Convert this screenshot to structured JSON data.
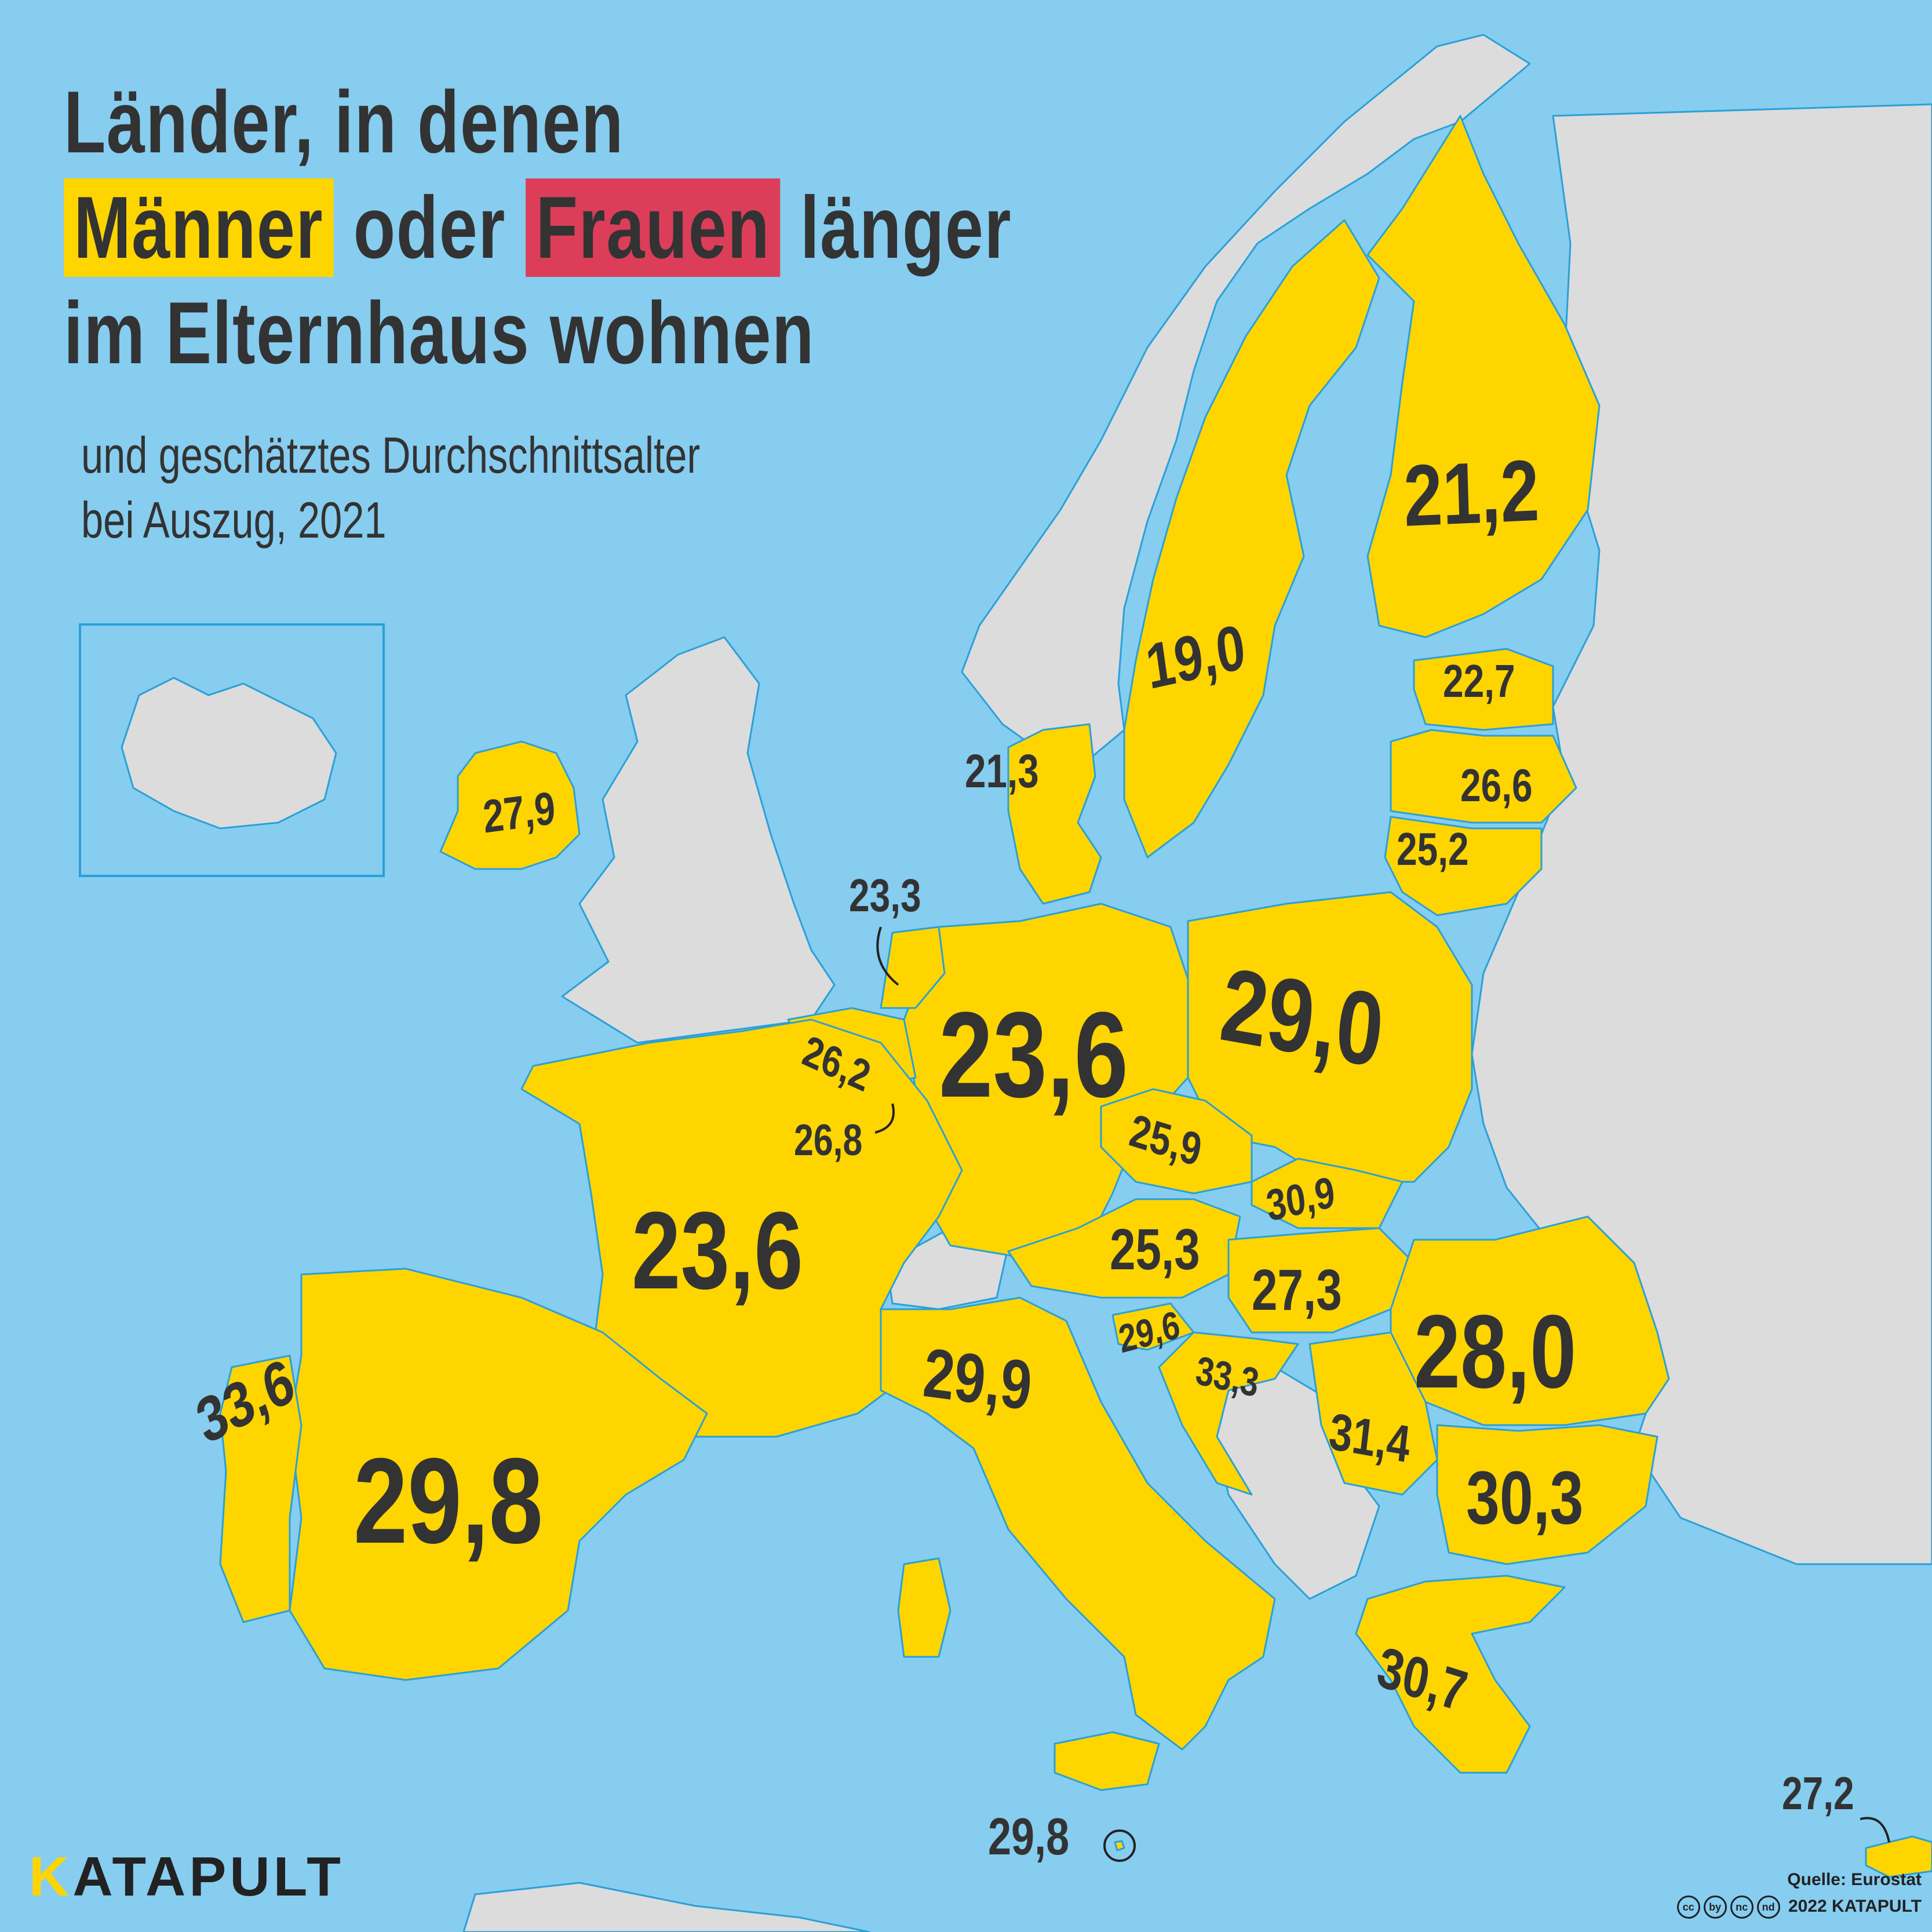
{
  "colors": {
    "sea": "#86cdf0",
    "land_other": "#dcdcdc",
    "highlight_men": "#ffd500",
    "highlight_women": "#dc3e5a",
    "border": "#2aa0d8",
    "text": "#333333"
  },
  "title": {
    "line1": "Länder, in denen",
    "men_word": "Männer",
    "middle": " oder ",
    "women_word": "Frauen",
    "end": " länger",
    "line3": "im Elternhaus wohnen"
  },
  "subtitle": {
    "line1": "und geschätztes Durchschnittsalter",
    "line2": "bei Auszug, 2021"
  },
  "values": {
    "finland": "21,2",
    "sweden": "19,0",
    "estonia": "22,7",
    "latvia": "26,6",
    "lithuania": "25,2",
    "denmark": "21,3",
    "ireland": "27,9",
    "netherlands": "23,3",
    "belgium": "26,2",
    "luxembourg": "26,8",
    "germany": "23,6",
    "poland": "29,0",
    "czechia": "25,9",
    "slovakia": "30,9",
    "austria": "25,3",
    "hungary": "27,3",
    "romania": "28,0",
    "france": "23,6",
    "italy": "29,9",
    "slovenia": "29,6",
    "croatia": "33,3",
    "serbia_region": "31,4",
    "bulgaria": "30,3",
    "greece": "30,7",
    "spain": "29,8",
    "portugal": "33,6",
    "malta": "29,8",
    "cyprus": "27,2"
  },
  "logo": {
    "mark": "K",
    "rest": "ATAPULT"
  },
  "source": {
    "label": "Quelle: Eurostat",
    "copyright": "2022 KATAPULT",
    "license_icons": [
      "cc",
      "by",
      "nc",
      "nd"
    ]
  }
}
